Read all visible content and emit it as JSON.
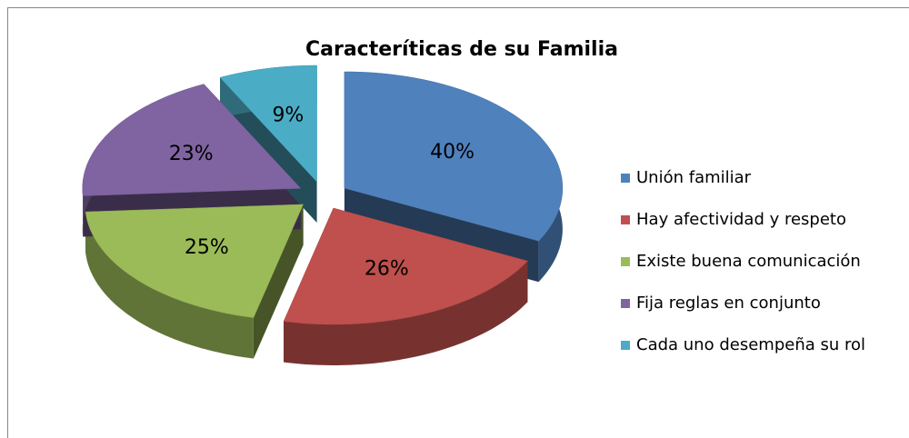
{
  "chart_data": {
    "type": "pie",
    "title": "Caracteríticas  de su Familia",
    "categories": [
      "Unión familiar",
      "Hay afectividad y respeto",
      "Existe buena comunicación",
      "Fija reglas en conjunto",
      "Cada uno desempeña su rol"
    ],
    "values": [
      40,
      26,
      25,
      23,
      9
    ],
    "value_labels": [
      "40%",
      "26%",
      "25%",
      "23%",
      "9%"
    ],
    "colors": [
      "#4f81bd",
      "#c0504d",
      "#9bbb59",
      "#8064a2",
      "#4bacc6"
    ],
    "legend": "right"
  }
}
